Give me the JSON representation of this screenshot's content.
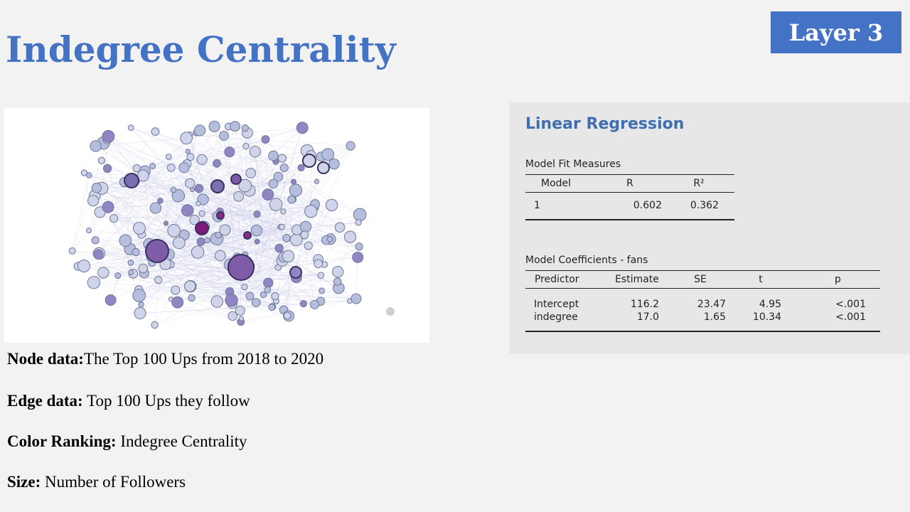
{
  "title": "Indegree Centrality",
  "badge": "Layer 3",
  "captions": {
    "node": {
      "label": "Node data:",
      "text": "The Top 100 Ups from 2018 to 2020"
    },
    "edge": {
      "label": "Edge data:",
      "text": " Top 100 Ups they follow"
    },
    "color": {
      "label": "Color Ranking:",
      "text": " Indegree Centrality"
    },
    "size": {
      "label": "Size:",
      "text": " Number of Followers"
    }
  },
  "regression": {
    "title": "Linear Regression",
    "fit": {
      "title": "Model Fit Measures",
      "headers": [
        "Model",
        "R",
        "R²"
      ],
      "rows": [
        [
          "1",
          "0.602",
          "0.362"
        ]
      ]
    },
    "coef": {
      "title": "Model Coefficients - fans",
      "headers": [
        "Predictor",
        "Estimate",
        "SE",
        "t",
        "p"
      ],
      "rows": [
        [
          "Intercept",
          "116.2",
          "23.47",
          "4.95",
          "<.001"
        ],
        [
          "indegree",
          "17.0",
          "1.65",
          "10.34",
          "<.001"
        ]
      ]
    }
  },
  "colors": {
    "accent": "#4472c4",
    "node_low": "#aab4d6",
    "node_mid": "#7a6fb0",
    "node_high": "#7d1a7a"
  }
}
